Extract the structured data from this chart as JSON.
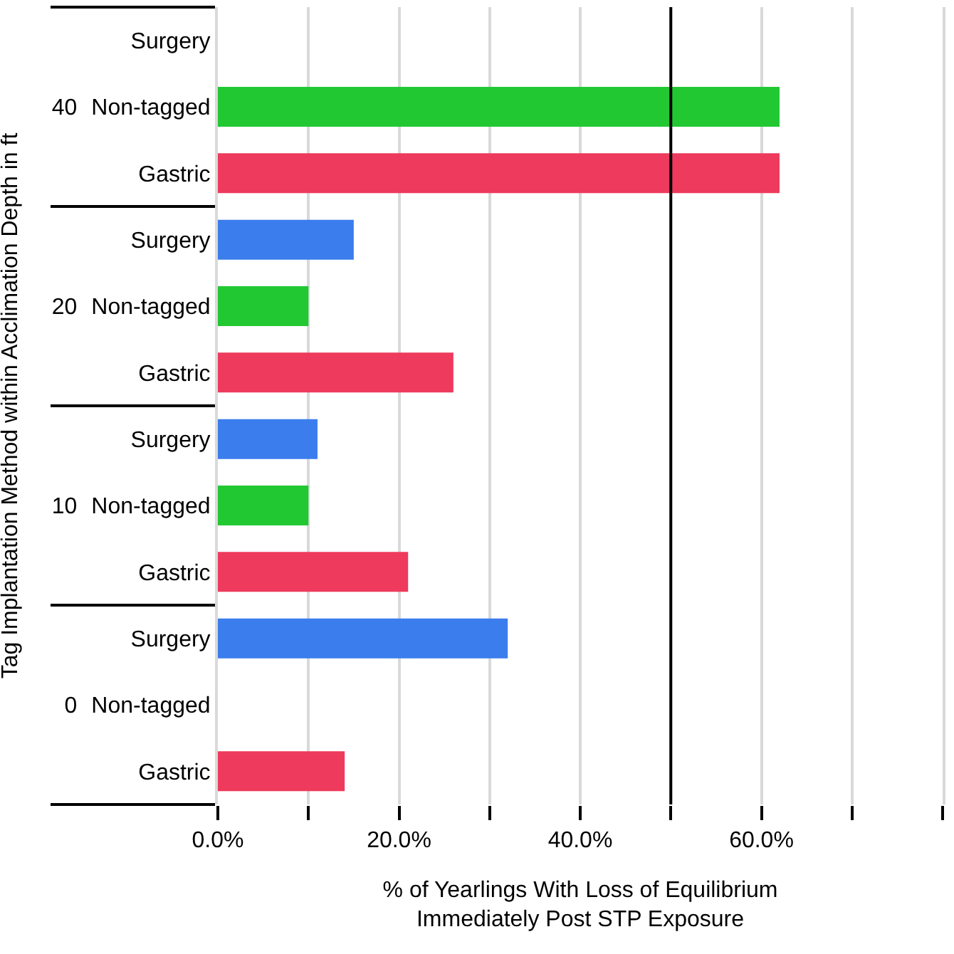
{
  "chart_data": {
    "type": "bar",
    "orientation": "horizontal",
    "xlabel": "% of Yearlings With Loss of Equilibrium\nImmediately Post STP Exposure",
    "ylabel": "Tag Implantation Method within Acclimation Depth in ft",
    "categories": [
      "40",
      "20",
      "10",
      "0"
    ],
    "series": [
      {
        "name": "Surgery",
        "color": "#3b7ded",
        "values": [
          null,
          15,
          11,
          32
        ]
      },
      {
        "name": "Non-tagged",
        "color": "#22c832",
        "values": [
          62,
          10,
          10,
          null
        ]
      },
      {
        "name": "Gastric",
        "color": "#ee3a5c",
        "values": [
          62,
          26,
          21,
          14
        ]
      }
    ],
    "xlim": [
      0,
      80
    ],
    "xticks": [
      {
        "value": 0,
        "label": "0.0%"
      },
      {
        "value": 10,
        "label": null
      },
      {
        "value": 20,
        "label": "20.0%"
      },
      {
        "value": 30,
        "label": null
      },
      {
        "value": 40,
        "label": "40.0%"
      },
      {
        "value": 50,
        "label": null
      },
      {
        "value": 60,
        "label": "60.0%"
      },
      {
        "value": 70,
        "label": null
      },
      {
        "value": 80,
        "label": null
      }
    ],
    "ref_lines": [
      {
        "axis": "x",
        "value": 50,
        "color": "#000000"
      }
    ],
    "grid": "x",
    "legend": false
  }
}
